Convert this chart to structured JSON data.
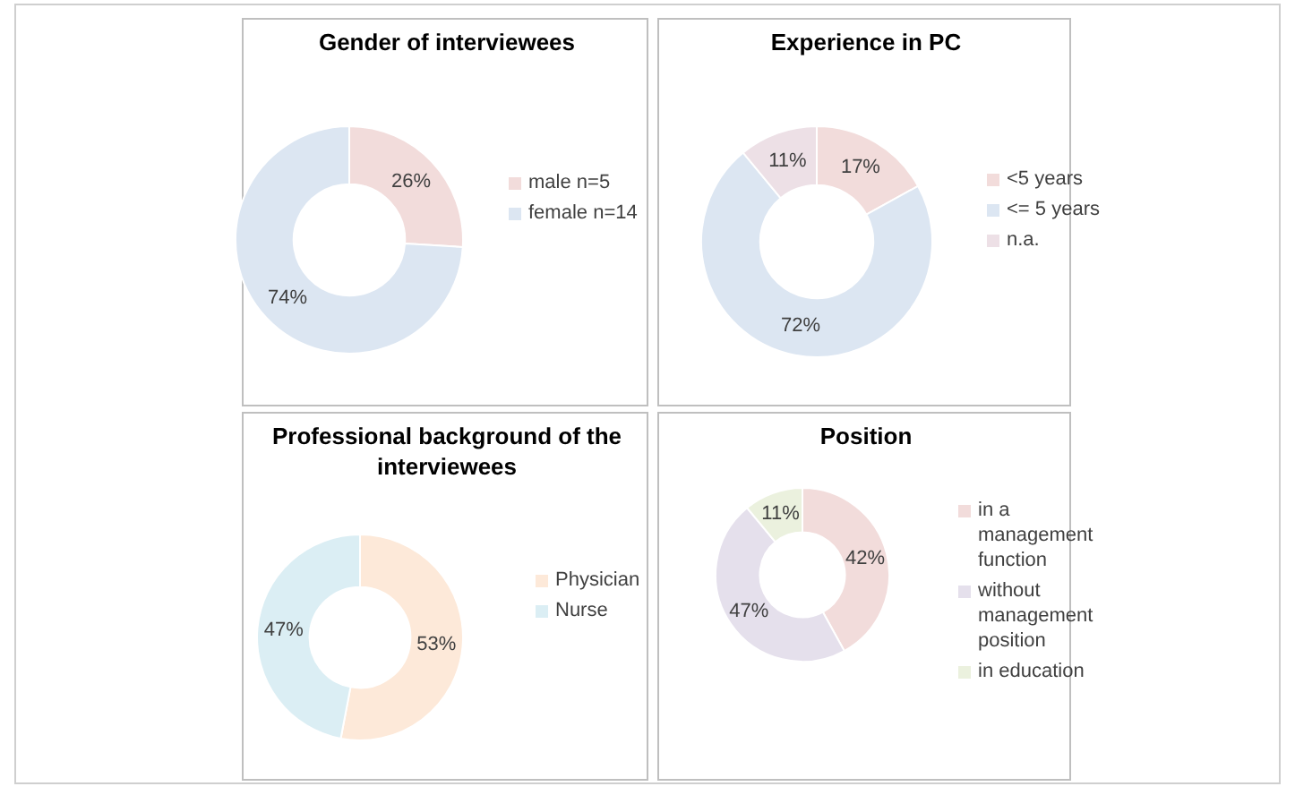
{
  "chart_data": [
    {
      "type": "donut",
      "title": "Gender of interviewees",
      "categories": [
        "male n=5",
        "female n=14"
      ],
      "values": [
        26,
        74
      ],
      "colors": [
        "#f2dcdb",
        "#dce6f2"
      ],
      "value_labels": [
        "26%",
        "74%"
      ],
      "legend": "right"
    },
    {
      "type": "donut",
      "title": "Experience in PC",
      "categories": [
        "<5 years",
        "<= 5 years",
        "n.a."
      ],
      "values": [
        17,
        72,
        11
      ],
      "colors": [
        "#f2dcdb",
        "#dce6f2",
        "#ede0e6"
      ],
      "value_labels": [
        "17%",
        "72%",
        "11%"
      ],
      "legend": "right"
    },
    {
      "type": "donut",
      "title": "Professional background of the interviewees",
      "categories": [
        "Physician",
        "Nurse"
      ],
      "values": [
        53,
        47
      ],
      "colors": [
        "#fde9d9",
        "#dbeef4"
      ],
      "value_labels": [
        "53%",
        "47%"
      ],
      "legend": "right"
    },
    {
      "type": "donut",
      "title": "Position",
      "categories": [
        "in a management function",
        "without management position",
        "in education"
      ],
      "values": [
        42,
        47,
        11
      ],
      "colors": [
        "#f2dcdb",
        "#e5e0ec",
        "#ebf1de"
      ],
      "value_labels": [
        "42%",
        "47%",
        "11%"
      ],
      "legend": "right"
    }
  ]
}
